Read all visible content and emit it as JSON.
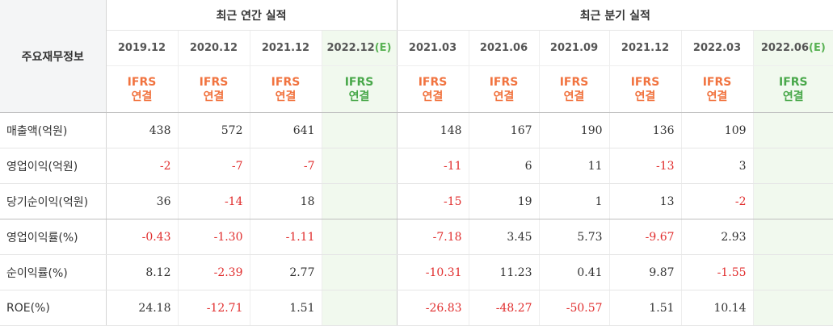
{
  "table": {
    "label_header": "주요재무정보",
    "annual_group": "최근 연간 실적",
    "quarter_group": "최근 분기 실적",
    "ifrs_line1": "IFRS",
    "ifrs_line2": "연결",
    "estimate_suffix": "(E)",
    "annual_periods": [
      "2019.12",
      "2020.12",
      "2021.12",
      "2022.12"
    ],
    "quarter_periods": [
      "2021.03",
      "2021.06",
      "2021.09",
      "2021.12",
      "2022.03",
      "2022.06"
    ],
    "rows": [
      {
        "label": "매출액(억원)",
        "annual": [
          "438",
          "572",
          "641",
          ""
        ],
        "quarter": [
          "148",
          "167",
          "190",
          "136",
          "109",
          ""
        ]
      },
      {
        "label": "영업이익(억원)",
        "annual": [
          "-2",
          "-7",
          "-7",
          ""
        ],
        "quarter": [
          "-11",
          "6",
          "11",
          "-13",
          "3",
          ""
        ]
      },
      {
        "label": "당기순이익(억원)",
        "annual": [
          "36",
          "-14",
          "18",
          ""
        ],
        "quarter": [
          "-15",
          "19",
          "1",
          "13",
          "-2",
          ""
        ]
      },
      {
        "label": "영업이익률(%)",
        "annual": [
          "-0.43",
          "-1.30",
          "-1.11",
          ""
        ],
        "quarter": [
          "-7.18",
          "3.45",
          "5.73",
          "-9.67",
          "2.93",
          ""
        ]
      },
      {
        "label": "순이익률(%)",
        "annual": [
          "8.12",
          "-2.39",
          "2.77",
          ""
        ],
        "quarter": [
          "-10.31",
          "11.23",
          "0.41",
          "9.87",
          "-1.55",
          ""
        ]
      },
      {
        "label": "ROE(%)",
        "annual": [
          "24.18",
          "-12.71",
          "1.51",
          ""
        ],
        "quarter": [
          "-26.83",
          "-48.27",
          "-50.57",
          "1.51",
          "10.14",
          ""
        ]
      }
    ],
    "colors": {
      "negative": "#e12e2e",
      "ifrs": "#f1733f",
      "estimate_bg": "#f1f9ee",
      "estimate_text": "#49a84a"
    }
  }
}
